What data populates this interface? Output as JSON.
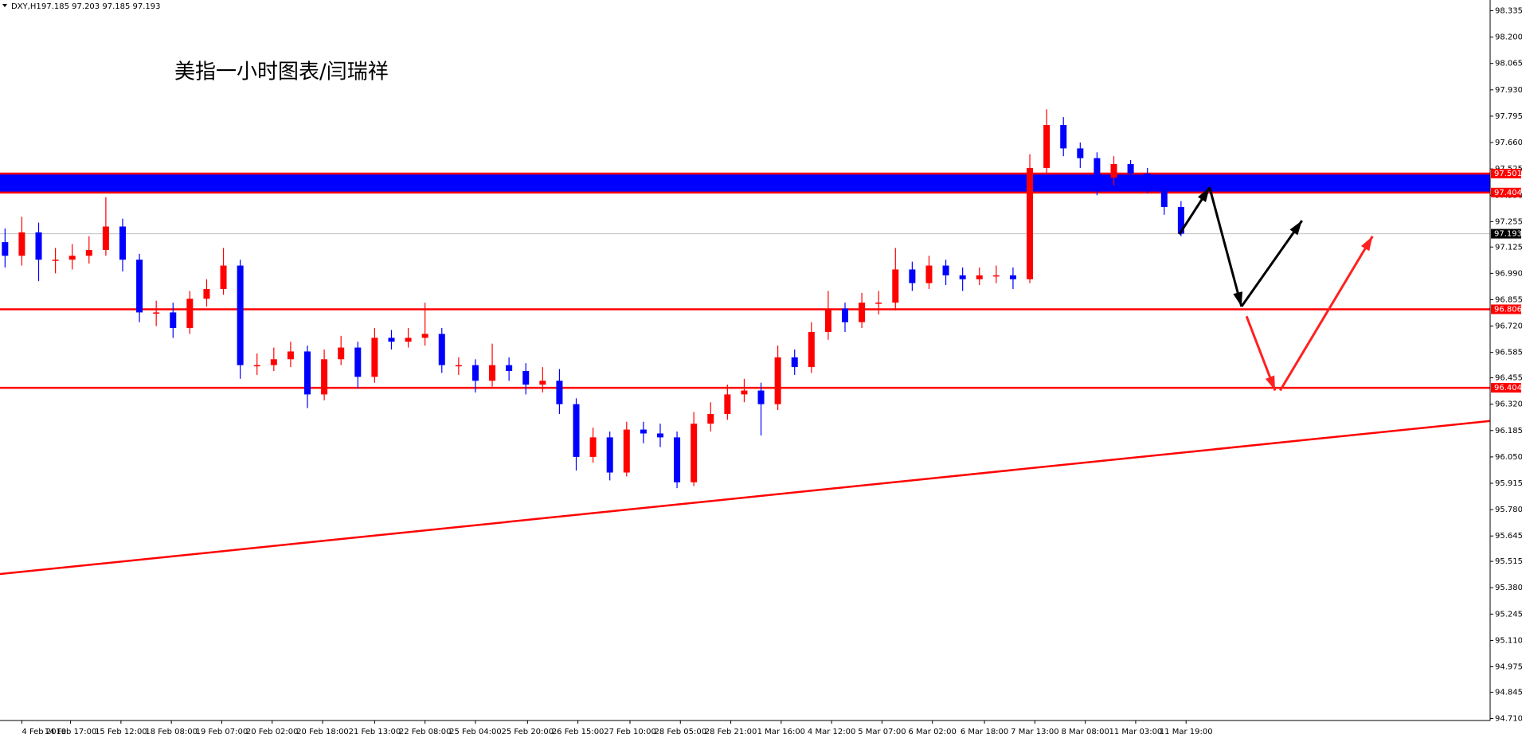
{
  "chart_data": {
    "type": "candlestick",
    "symbol": "DXY,H1",
    "ohlc_text": "97.185 97.203 97.185 97.193",
    "annotation": "美指一小时图表/闫瑞祥",
    "open": [
      97.15,
      97.08,
      97.2,
      97.06,
      97.06,
      97.08,
      97.11,
      97.23,
      97.06,
      96.79,
      96.79,
      96.71,
      96.86,
      96.91,
      97.03,
      96.52,
      96.52,
      96.55,
      96.59,
      96.37,
      96.55,
      96.61,
      96.46,
      96.66,
      96.64,
      96.66,
      96.68,
      96.52,
      96.52,
      96.44,
      96.52,
      96.49,
      96.42,
      96.44,
      96.32,
      96.05,
      96.15,
      95.97,
      96.19,
      96.17,
      96.15,
      95.92,
      96.22,
      96.27,
      96.37,
      96.39,
      96.32,
      96.56,
      96.51,
      96.69,
      96.81,
      96.74,
      96.84,
      96.84,
      97.01,
      96.94,
      97.03,
      96.98,
      96.96,
      96.98,
      96.98,
      96.96,
      97.53,
      97.75,
      97.63,
      97.58,
      97.48,
      97.55,
      97.5,
      97.43,
      97.33
    ],
    "high": [
      97.22,
      97.28,
      97.25,
      97.12,
      97.14,
      97.18,
      97.38,
      97.27,
      97.09,
      96.85,
      96.84,
      96.9,
      96.96,
      97.12,
      97.06,
      96.58,
      96.61,
      96.64,
      96.62,
      96.6,
      96.67,
      96.64,
      96.71,
      96.7,
      96.71,
      96.84,
      96.71,
      96.56,
      96.55,
      96.63,
      96.56,
      96.53,
      96.51,
      96.5,
      96.35,
      96.2,
      96.18,
      96.23,
      96.23,
      96.22,
      96.18,
      96.28,
      96.33,
      96.42,
      96.45,
      96.43,
      96.62,
      96.6,
      96.74,
      96.9,
      96.84,
      96.89,
      96.9,
      97.12,
      97.05,
      97.08,
      97.06,
      97.02,
      97.02,
      97.03,
      97.02,
      97.6,
      97.83,
      97.79,
      97.66,
      97.61,
      97.59,
      97.57,
      97.53,
      97.47,
      97.36
    ],
    "low": [
      97.02,
      97.03,
      96.95,
      96.99,
      97.01,
      97.04,
      97.08,
      97.0,
      96.74,
      96.72,
      96.66,
      96.68,
      96.82,
      96.88,
      96.45,
      96.47,
      96.49,
      96.51,
      96.3,
      96.34,
      96.52,
      96.4,
      96.43,
      96.6,
      96.61,
      96.62,
      96.48,
      96.47,
      96.38,
      96.41,
      96.44,
      96.37,
      96.38,
      96.27,
      95.98,
      96.02,
      95.93,
      95.95,
      96.12,
      96.1,
      95.89,
      95.9,
      96.18,
      96.24,
      96.33,
      96.16,
      96.29,
      96.47,
      96.48,
      96.65,
      96.69,
      96.71,
      96.78,
      96.8,
      96.9,
      96.91,
      96.93,
      96.9,
      96.93,
      96.94,
      96.91,
      96.94,
      97.5,
      97.59,
      97.53,
      97.39,
      97.44,
      97.45,
      97.4,
      97.29,
      97.18
    ],
    "close": [
      97.08,
      97.2,
      97.06,
      97.06,
      97.08,
      97.11,
      97.23,
      97.06,
      96.79,
      96.79,
      96.71,
      96.86,
      96.91,
      97.03,
      96.52,
      96.52,
      96.55,
      96.59,
      96.37,
      96.55,
      96.61,
      96.46,
      96.66,
      96.64,
      96.66,
      96.68,
      96.52,
      96.52,
      96.44,
      96.52,
      96.49,
      96.42,
      96.44,
      96.32,
      96.05,
      96.15,
      95.97,
      96.19,
      96.17,
      96.15,
      95.92,
      96.22,
      96.27,
      96.37,
      96.39,
      96.32,
      96.56,
      96.51,
      96.69,
      96.81,
      96.74,
      96.84,
      96.84,
      97.01,
      96.94,
      97.03,
      96.98,
      96.96,
      96.98,
      96.98,
      96.96,
      97.53,
      97.75,
      97.63,
      97.58,
      97.48,
      97.55,
      97.5,
      97.43,
      97.33,
      97.193
    ],
    "up_color": "#ff0000",
    "down_color": "#0000ff",
    "xlim": [
      0,
      88.7
    ],
    "ylim": [
      94.7,
      98.39
    ],
    "xticks": [
      {
        "value": 1.3,
        "label": "4 Feb 2019"
      },
      {
        "value": 4.2,
        "label": "14 Feb 17:00"
      },
      {
        "value": 7.2,
        "label": "15 Feb 12:00"
      },
      {
        "value": 10.2,
        "label": "18 Feb 08:00"
      },
      {
        "value": 13.2,
        "label": "19 Feb 07:00"
      },
      {
        "value": 16.2,
        "label": "20 Feb 02:00"
      },
      {
        "value": 19.2,
        "label": "20 Feb 18:00"
      },
      {
        "value": 22.3,
        "label": "21 Feb 13:00"
      },
      {
        "value": 25.3,
        "label": "22 Feb 08:00"
      },
      {
        "value": 28.3,
        "label": "25 Feb 04:00"
      },
      {
        "value": 31.4,
        "label": "25 Feb 20:00"
      },
      {
        "value": 34.4,
        "label": "26 Feb 15:00"
      },
      {
        "value": 37.5,
        "label": "27 Feb 10:00"
      },
      {
        "value": 40.5,
        "label": "28 Feb 05:00"
      },
      {
        "value": 43.5,
        "label": "28 Feb 21:00"
      },
      {
        "value": 46.5,
        "label": "1 Mar 16:00"
      },
      {
        "value": 49.5,
        "label": "4 Mar 12:00"
      },
      {
        "value": 52.5,
        "label": "5 Mar 07:00"
      },
      {
        "value": 55.5,
        "label": "6 Mar 02:00"
      },
      {
        "value": 58.6,
        "label": "6 Mar 18:00"
      },
      {
        "value": 61.6,
        "label": "7 Mar 13:00"
      },
      {
        "value": 64.6,
        "label": "8 Mar 08:00"
      },
      {
        "value": 67.6,
        "label": "11 Mar 03:00"
      },
      {
        "value": 70.6,
        "label": "11 Mar 19:00"
      }
    ],
    "yticks": [
      {
        "value": 98.335,
        "label": "98.335"
      },
      {
        "value": 98.2,
        "label": "98.200"
      },
      {
        "value": 98.065,
        "label": "98.065"
      },
      {
        "value": 97.93,
        "label": "97.930"
      },
      {
        "value": 97.795,
        "label": "97.795"
      },
      {
        "value": 97.66,
        "label": "97.660"
      },
      {
        "value": 97.525,
        "label": "97.525"
      },
      {
        "value": 97.39,
        "label": "97.390"
      },
      {
        "value": 97.255,
        "label": "97.255"
      },
      {
        "value": 97.125,
        "label": "97.125"
      },
      {
        "value": 96.99,
        "label": "96.990"
      },
      {
        "value": 96.855,
        "label": "96.855"
      },
      {
        "value": 96.72,
        "label": "96.720"
      },
      {
        "value": 96.585,
        "label": "96.585"
      },
      {
        "value": 96.455,
        "label": "96.455"
      },
      {
        "value": 96.32,
        "label": "96.320"
      },
      {
        "value": 96.185,
        "label": "96.185"
      },
      {
        "value": 96.05,
        "label": "96.050"
      },
      {
        "value": 95.915,
        "label": "95.915"
      },
      {
        "value": 95.78,
        "label": "95.780"
      },
      {
        "value": 95.645,
        "label": "95.645"
      },
      {
        "value": 95.515,
        "label": "95.515"
      },
      {
        "value": 95.38,
        "label": "95.380"
      },
      {
        "value": 95.245,
        "label": "95.245"
      },
      {
        "value": 95.11,
        "label": "95.110"
      },
      {
        "value": 94.975,
        "label": "94.975"
      },
      {
        "value": 94.845,
        "label": "94.845"
      },
      {
        "value": 94.71,
        "label": "94.710"
      }
    ],
    "levels": [
      97.501,
      97.404,
      96.806,
      96.404
    ],
    "level_color": "#ff0000",
    "zone_color": "#0000ff",
    "current_price": 97.193,
    "trendline": {
      "x": [
        0,
        88.7
      ],
      "y": [
        95.45,
        96.234
      ],
      "color": "#ff0000"
    },
    "arrows": [
      {
        "x": [
          70.2,
          72.0
        ],
        "y": [
          97.19,
          97.43
        ],
        "color": "#000000"
      },
      {
        "x": [
          72.0,
          73.9
        ],
        "y": [
          97.43,
          96.82
        ],
        "color": "#000000"
      },
      {
        "x": [
          73.9,
          77.5
        ],
        "y": [
          96.82,
          97.26
        ],
        "color": "#000000"
      },
      {
        "x": [
          74.2,
          75.9
        ],
        "y": [
          96.77,
          96.39
        ],
        "color": "#ff2020"
      },
      {
        "x": [
          76.2,
          81.7
        ],
        "y": [
          96.39,
          97.18
        ],
        "color": "#ff2020"
      }
    ]
  }
}
